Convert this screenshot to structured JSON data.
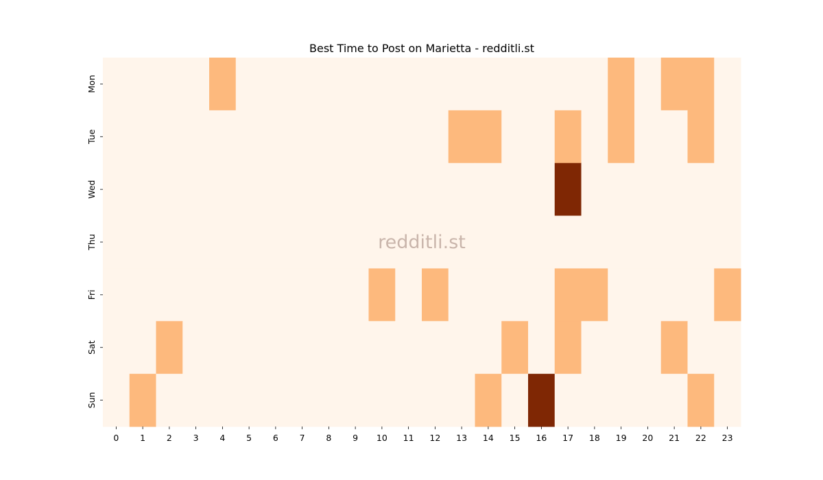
{
  "chart_data": {
    "type": "heatmap",
    "title": "Best Time to Post on Marietta - redditli.st",
    "watermark": "redditli.st",
    "xlabel": "",
    "ylabel": "",
    "x_categories": [
      "0",
      "1",
      "2",
      "3",
      "4",
      "5",
      "6",
      "7",
      "8",
      "9",
      "10",
      "11",
      "12",
      "13",
      "14",
      "15",
      "16",
      "17",
      "18",
      "19",
      "20",
      "21",
      "22",
      "23"
    ],
    "y_categories": [
      "Mon",
      "Tue",
      "Wed",
      "Thu",
      "Fri",
      "Sat",
      "Sun"
    ],
    "colorscale": "Oranges",
    "grid": false,
    "legend": "none",
    "values": [
      [
        0,
        0,
        0,
        0,
        1,
        0,
        0,
        0,
        0,
        0,
        0,
        0,
        0,
        0,
        0,
        0,
        0,
        0,
        0,
        1,
        0,
        1,
        1,
        0
      ],
      [
        0,
        0,
        0,
        0,
        0,
        0,
        0,
        0,
        0,
        0,
        0,
        0,
        0,
        1,
        1,
        0,
        0,
        1,
        0,
        1,
        0,
        0,
        1,
        0
      ],
      [
        0,
        0,
        0,
        0,
        0,
        0,
        0,
        0,
        0,
        0,
        0,
        0,
        0,
        0,
        0,
        0,
        0,
        3,
        0,
        0,
        0,
        0,
        0,
        0
      ],
      [
        0,
        0,
        0,
        0,
        0,
        0,
        0,
        0,
        0,
        0,
        0,
        0,
        0,
        0,
        0,
        0,
        0,
        0,
        0,
        0,
        0,
        0,
        0,
        0
      ],
      [
        0,
        0,
        0,
        0,
        0,
        0,
        0,
        0,
        0,
        0,
        1,
        0,
        1,
        0,
        0,
        0,
        0,
        1,
        1,
        0,
        0,
        0,
        0,
        1
      ],
      [
        0,
        0,
        1,
        0,
        0,
        0,
        0,
        0,
        0,
        0,
        0,
        0,
        0,
        0,
        0,
        1,
        0,
        1,
        0,
        0,
        0,
        1,
        0,
        0
      ],
      [
        0,
        1,
        0,
        0,
        0,
        0,
        0,
        0,
        0,
        0,
        0,
        0,
        0,
        0,
        1,
        0,
        5,
        0,
        0,
        0,
        0,
        0,
        1,
        0
      ]
    ],
    "color_stops": [
      "#fff5eb",
      "#fdb97d",
      "#ea5f0e",
      "#7f2704"
    ]
  }
}
